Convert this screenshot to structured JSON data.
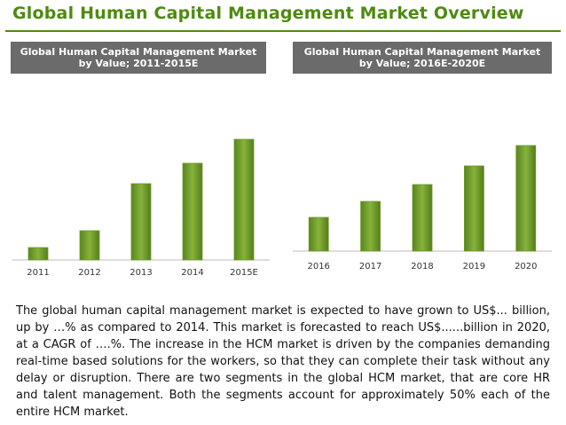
{
  "title": "Global Human Capital Management Market Overview",
  "chart_data": [
    {
      "type": "bar",
      "title": "Global Human Capital Management Market by Value; 2011-2015E",
      "categories": [
        "2011",
        "2012",
        "2013",
        "2014",
        "2015E"
      ],
      "values": [
        14,
        33,
        86,
        109,
        136
      ],
      "color": "#6e9a2a"
    },
    {
      "type": "bar",
      "title": "Global Human Capital Management Market by Value; 2016E-2020E",
      "categories": [
        "2016",
        "2017",
        "2018",
        "2019",
        "2020"
      ],
      "values": [
        38,
        56,
        75,
        96,
        119
      ],
      "color": "#6e9a2a"
    }
  ],
  "paragraph": "The global human capital management market is expected to have grown to US$... billion, up by …% as compared to 2014. This market is forecasted to reach US$......billion in 2020, at a CAGR of ….%. The increase in the HCM market is driven by the companies demanding real-time based solutions for the workers, so that they can complete their task without any delay or disruption. There are two segments in the global HCM market, that are core HR and talent management. Both the segments account for approximately 50% each of the entire HCM market."
}
